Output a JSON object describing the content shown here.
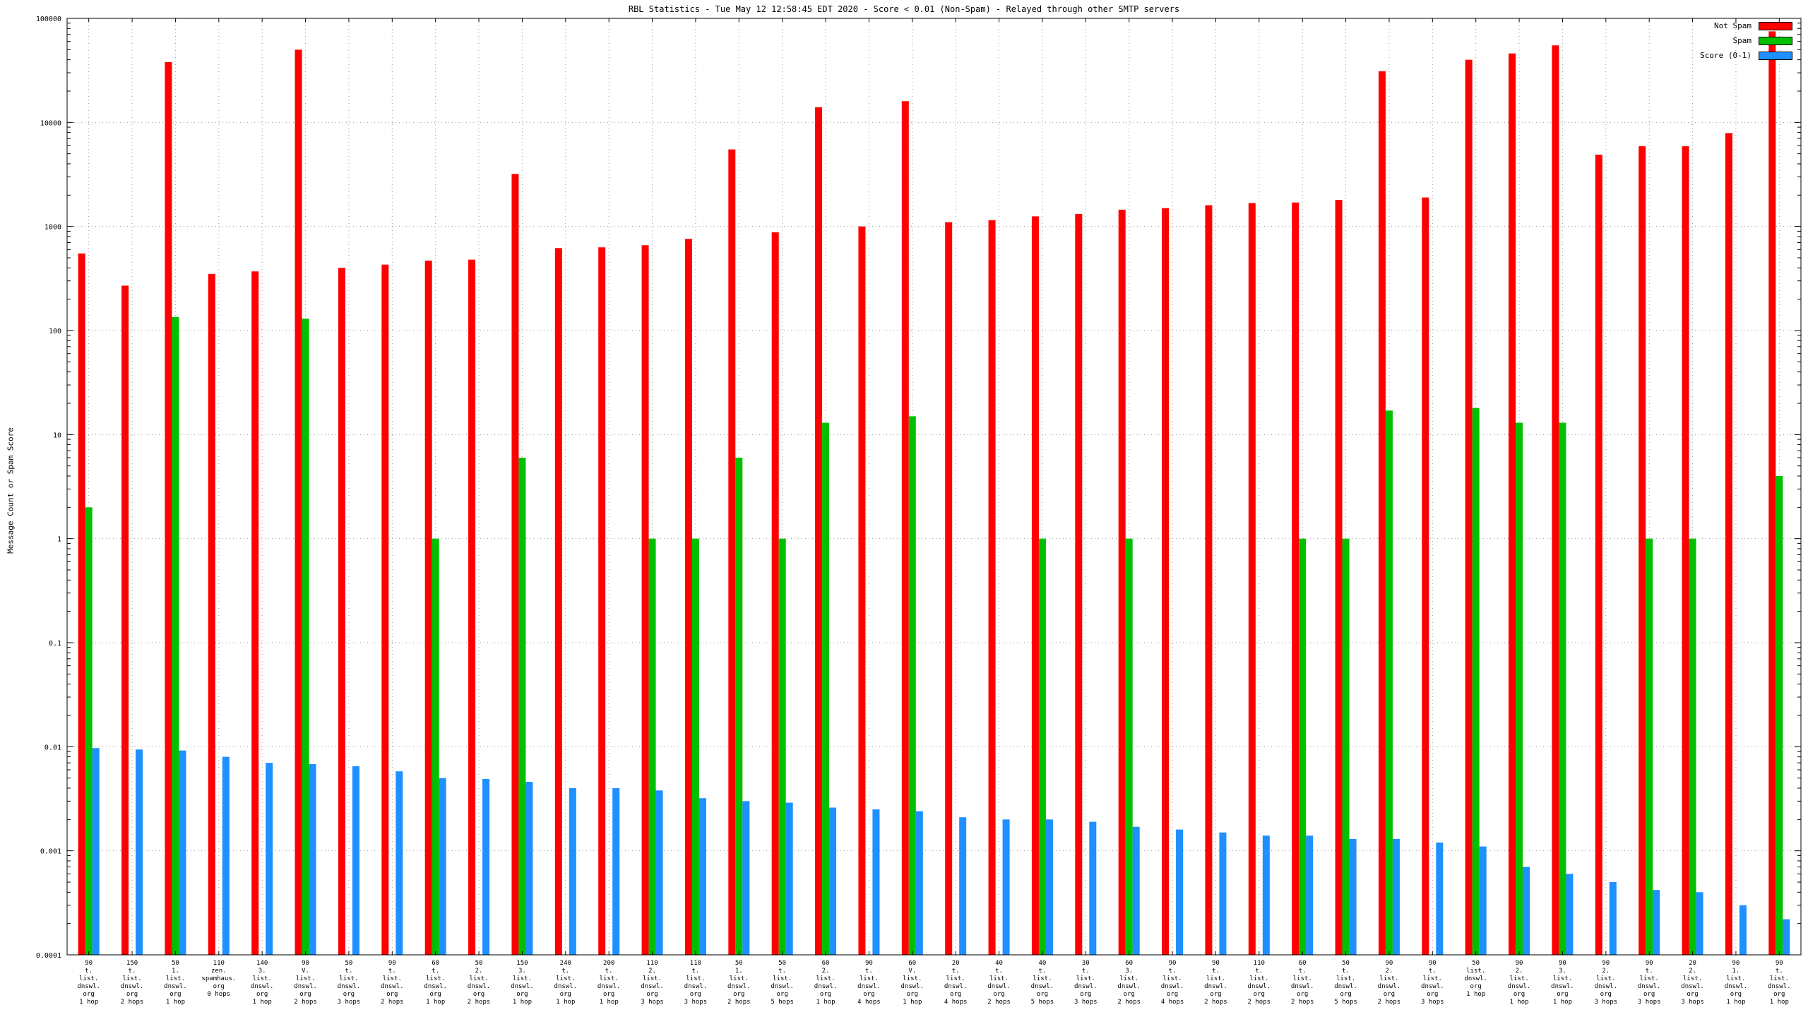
{
  "chart_data": {
    "type": "bar",
    "title": "RBL Statistics - Tue May 12 12:58:45 EDT 2020 - Score < 0.01 (Non-Spam) - Relayed through other SMTP servers",
    "ylabel": "Message Count or Spam Score",
    "ylim": [
      0.0001,
      100000
    ],
    "grid": true,
    "legend_position": "top-right",
    "yticks": [
      {
        "label": "100000",
        "value": 100000
      },
      {
        "label": "10000",
        "value": 10000
      },
      {
        "label": "1000",
        "value": 1000
      },
      {
        "label": "100",
        "value": 100
      },
      {
        "label": "10",
        "value": 10
      },
      {
        "label": "1",
        "value": 1
      },
      {
        "label": "0.1",
        "value": 0.1
      },
      {
        "label": "0.01",
        "value": 0.01
      },
      {
        "label": "0.001",
        "value": 0.001
      },
      {
        "label": "0.0001",
        "value": 0.0001
      }
    ],
    "legend": [
      {
        "label": "Not Spam",
        "color": "#ff0000"
      },
      {
        "label": "Spam",
        "color": "#00c000"
      },
      {
        "label": "Score (0-1)",
        "color": "#1e90ff"
      }
    ],
    "categories": [
      [
        "90",
        "t.",
        "list.",
        "dnswl.",
        "org",
        "1 hop"
      ],
      [
        "150",
        "t.",
        "list.",
        "dnswl.",
        "org",
        "2 hops"
      ],
      [
        "50",
        "1.",
        "list.",
        "dnswl.",
        "org",
        "1 hop"
      ],
      [
        "110",
        "zen.",
        "spamhaus.",
        "org",
        "0 hops"
      ],
      [
        "140",
        "3.",
        "list.",
        "dnswl.",
        "org",
        "1 hop"
      ],
      [
        "90",
        "V.",
        "list.",
        "dnswl.",
        "org",
        "2 hops"
      ],
      [
        "50",
        "t.",
        "list.",
        "dnswl.",
        "org",
        "3 hops"
      ],
      [
        "90",
        "t.",
        "list.",
        "dnswl.",
        "org",
        "2 hops"
      ],
      [
        "60",
        "t.",
        "list.",
        "dnswl.",
        "org",
        "1 hop"
      ],
      [
        "50",
        "2.",
        "list.",
        "dnswl.",
        "org",
        "2 hops"
      ],
      [
        "150",
        "3.",
        "list.",
        "dnswl.",
        "org",
        "1 hop"
      ],
      [
        "240",
        "t.",
        "list.",
        "dnswl.",
        "org",
        "1 hop"
      ],
      [
        "200",
        "t.",
        "list.",
        "dnswl.",
        "org",
        "1 hop"
      ],
      [
        "110",
        "2.",
        "list.",
        "dnswl.",
        "org",
        "3 hops"
      ],
      [
        "110",
        "t.",
        "list.",
        "dnswl.",
        "org",
        "3 hops"
      ],
      [
        "50",
        "1.",
        "list.",
        "dnswl.",
        "org",
        "2 hops"
      ],
      [
        "50",
        "t.",
        "list.",
        "dnswl.",
        "org",
        "5 hops"
      ],
      [
        "60",
        "2.",
        "list.",
        "dnswl.",
        "org",
        "1 hop"
      ],
      [
        "90",
        "t.",
        "list.",
        "dnswl.",
        "org",
        "4 hops"
      ],
      [
        "60",
        "V.",
        "list.",
        "dnswl.",
        "org",
        "1 hop"
      ],
      [
        "20",
        "t.",
        "list.",
        "dnswl.",
        "org",
        "4 hops"
      ],
      [
        "40",
        "t.",
        "list.",
        "dnswl.",
        "org",
        "2 hops"
      ],
      [
        "40",
        "t.",
        "list.",
        "dnswl.",
        "org",
        "5 hops"
      ],
      [
        "30",
        "t.",
        "list.",
        "dnswl.",
        "org",
        "3 hops"
      ],
      [
        "60",
        "3.",
        "list.",
        "dnswl.",
        "org",
        "2 hops"
      ],
      [
        "90",
        "t.",
        "list.",
        "dnswl.",
        "org",
        "4 hops"
      ],
      [
        "90",
        "t.",
        "list.",
        "dnswl.",
        "org",
        "2 hops"
      ],
      [
        "110",
        "t.",
        "list.",
        "dnswl.",
        "org",
        "2 hops"
      ],
      [
        "60",
        "t.",
        "list.",
        "dnswl.",
        "org",
        "2 hops"
      ],
      [
        "50",
        "t.",
        "list.",
        "dnswl.",
        "org",
        "5 hops"
      ],
      [
        "90",
        "2.",
        "list.",
        "dnswl.",
        "org",
        "2 hops"
      ],
      [
        "90",
        "t.",
        "list.",
        "dnswl.",
        "org",
        "3 hops"
      ],
      [
        "50",
        "list.",
        "dnswl.",
        "org",
        "",
        "1 hop"
      ],
      [
        "90",
        "2.",
        "list.",
        "dnswl.",
        "org",
        "1 hop"
      ],
      [
        "90",
        "3.",
        "list.",
        "dnswl.",
        "org",
        "1 hop"
      ],
      [
        "90",
        "2.",
        "list.",
        "dnswl.",
        "org",
        "3 hops"
      ],
      [
        "90",
        "t.",
        "list.",
        "dnswl.",
        "org",
        "3 hops"
      ],
      [
        "20",
        "2.",
        "list.",
        "dnswl.",
        "org",
        "3 hops"
      ],
      [
        "90",
        "1.",
        "list.",
        "dnswl.",
        "org",
        "1 hop"
      ],
      [
        "90",
        "t.",
        "list.",
        "dnswl.",
        "org",
        "1 hop"
      ]
    ],
    "series": [
      {
        "name": "Not Spam",
        "color": "#ff0000",
        "values": [
          550,
          270,
          38000,
          350,
          370,
          50000,
          400,
          430,
          470,
          480,
          3200,
          620,
          630,
          660,
          760,
          5500,
          880,
          14000,
          1000,
          16000,
          1100,
          1150,
          1250,
          1320,
          1450,
          1500,
          1600,
          1680,
          1700,
          1800,
          31000,
          1900,
          40000,
          46000,
          55000,
          4900,
          5900,
          5900,
          7900,
          75000
        ]
      },
      {
        "name": "Spam",
        "color": "#00c000",
        "values": [
          2,
          null,
          135,
          null,
          null,
          130,
          null,
          null,
          1,
          null,
          6,
          null,
          null,
          1,
          1,
          6,
          1,
          13,
          null,
          15,
          null,
          null,
          1,
          null,
          1,
          null,
          null,
          null,
          1,
          1,
          17,
          null,
          18,
          13,
          13,
          null,
          1,
          1,
          null,
          4
        ]
      },
      {
        "name": "Score (0-1)",
        "color": "#1e90ff",
        "values": [
          0.0097,
          0.0094,
          0.0092,
          0.008,
          0.007,
          0.0068,
          0.0065,
          0.0058,
          0.005,
          0.0049,
          0.0046,
          0.004,
          0.004,
          0.0038,
          0.0032,
          0.003,
          0.0029,
          0.0026,
          0.0025,
          0.0024,
          0.0021,
          0.002,
          0.002,
          0.0019,
          0.0017,
          0.0016,
          0.0015,
          0.0014,
          0.0014,
          0.0013,
          0.0013,
          0.0012,
          0.0011,
          0.0007,
          0.0006,
          0.0005,
          0.00042,
          0.0004,
          0.0003,
          0.00022
        ]
      }
    ]
  }
}
